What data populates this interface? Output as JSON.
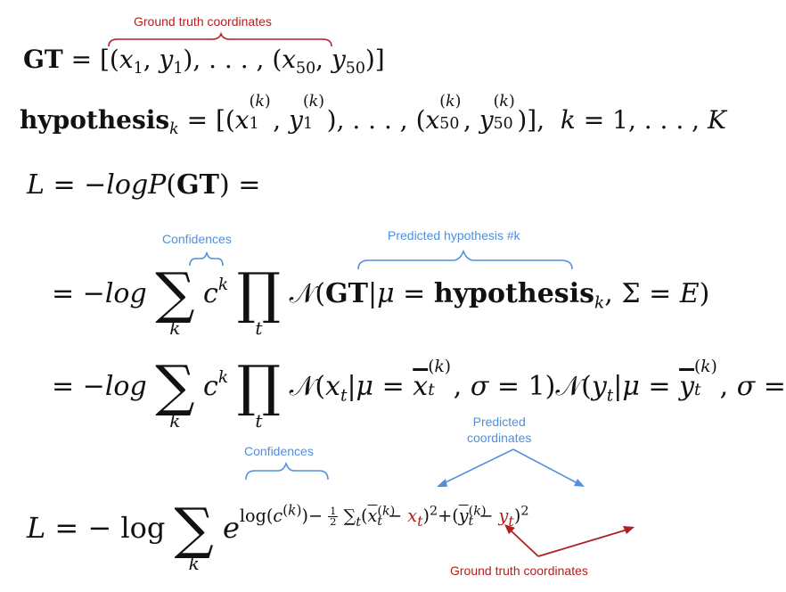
{
  "annotations": {
    "gt_top": "Ground truth coordinates",
    "confidences_1": "Confidences",
    "predicted_hypothesis": "Predicted hypothesis #k",
    "confidences_2": "Confidences",
    "predicted_coordinates_line1": "Predicted",
    "predicted_coordinates_line2": "coordinates",
    "gt_bottom": "Ground truth coordinates"
  },
  "colors": {
    "annotation_red": "#b21f1f",
    "annotation_blue": "#4f8fdc",
    "text": "#111111"
  },
  "equations": {
    "gt_bold": "GT",
    "hypothesis_bold": "hypothesis",
    "loss_symbol": "L",
    "neg_log": "−log",
    "log_text": "log",
    "sum_index": "k",
    "prod_index": "t"
  }
}
